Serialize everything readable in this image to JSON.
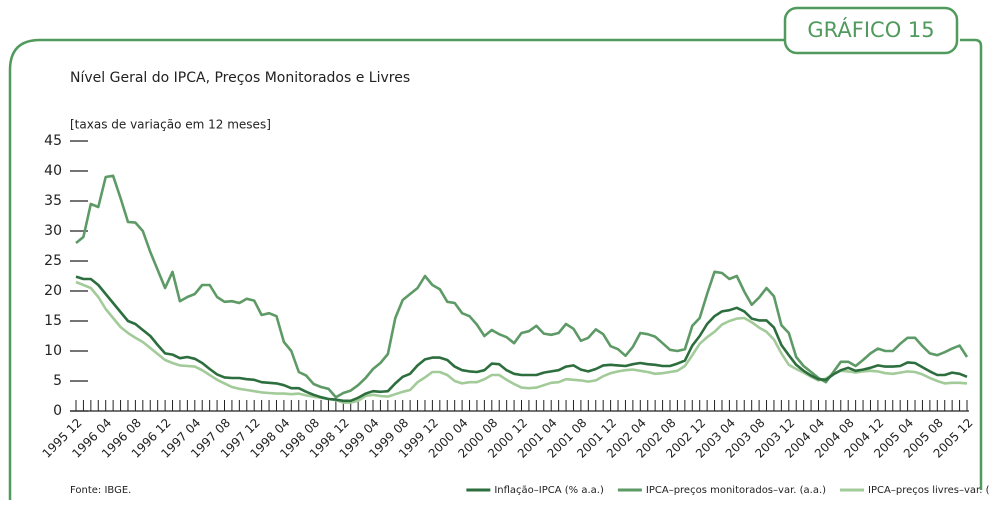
{
  "chart_data": {
    "type": "line",
    "badge": "GRÁFICO 15",
    "title": "Nível Geral do IPCA, Preços Monitorados e Livres",
    "subtitle": "[taxas de variação em 12 meses]",
    "source": "Fonte: IBGE.",
    "categories": [
      "1995 12",
      null,
      null,
      null,
      "1996 04",
      null,
      null,
      null,
      "1996 08",
      null,
      null,
      null,
      "1996 12",
      null,
      null,
      null,
      "1997 04",
      null,
      null,
      null,
      "1997 08",
      null,
      null,
      null,
      "1997 12",
      null,
      null,
      null,
      "1998 04",
      null,
      null,
      null,
      "1998 08",
      null,
      null,
      null,
      "1998 12",
      null,
      null,
      null,
      "1999 04",
      null,
      null,
      null,
      "1999 08",
      null,
      null,
      null,
      "1999 12",
      null,
      null,
      null,
      "2000 04",
      null,
      null,
      null,
      "2000 08",
      null,
      null,
      null,
      "2000 12",
      null,
      null,
      null,
      "2001 04",
      null,
      null,
      null,
      "2001 08",
      null,
      null,
      null,
      "2001 12",
      null,
      null,
      null,
      "2002 04",
      null,
      null,
      null,
      "2002 08",
      null,
      null,
      null,
      "2002 12",
      null,
      null,
      null,
      "2003 04",
      null,
      null,
      null,
      "2003 08",
      null,
      null,
      null,
      "2003 12",
      null,
      null,
      null,
      "2004 04",
      null,
      null,
      null,
      "2004 08",
      null,
      null,
      null,
      "2004 12",
      null,
      null,
      null,
      "2005 04",
      null,
      null,
      null,
      "2005 08",
      null,
      null,
      null,
      "2005 12"
    ],
    "ylim": [
      0,
      45
    ],
    "yticks": [
      0,
      5,
      10,
      15,
      20,
      25,
      30,
      35,
      40,
      45
    ],
    "series": [
      {
        "name": "Inflação–IPCA (% a.a.)",
        "color": "#2d6e3e",
        "values": [
          22.4,
          22,
          22,
          21,
          19.5,
          18,
          16.5,
          15,
          14.5,
          13.5,
          12.5,
          11,
          9.6,
          9.4,
          8.8,
          9,
          8.7,
          8,
          7,
          6.1,
          5.6,
          5.5,
          5.5,
          5.3,
          5.2,
          4.8,
          4.7,
          4.6,
          4.3,
          3.8,
          3.8,
          3.2,
          2.7,
          2.3,
          2,
          1.9,
          1.7,
          1.7,
          2.2,
          2.9,
          3.3,
          3.2,
          3.3,
          4.6,
          5.7,
          6.2,
          7.6,
          8.6,
          8.9,
          8.9,
          8.5,
          7.4,
          6.8,
          6.6,
          6.5,
          6.8,
          7.9,
          7.8,
          6.8,
          6.2,
          6,
          6,
          6,
          6.4,
          6.6,
          6.8,
          7.4,
          7.6,
          6.9,
          6.6,
          7,
          7.6,
          7.7,
          7.6,
          7.5,
          7.8,
          8,
          7.8,
          7.7,
          7.5,
          7.5,
          7.9,
          8.4,
          10.9,
          12.5,
          14.5,
          15.8,
          16.6,
          16.8,
          17.2,
          16.6,
          15.4,
          15.1,
          15.1,
          13.9,
          11,
          9.3,
          7.7,
          6.7,
          5.9,
          5.3,
          5.2,
          6.1,
          6.8,
          7.2,
          6.7,
          6.9,
          7.2,
          7.6,
          7.4,
          7.4,
          7.5,
          8.1,
          8,
          7.3,
          6.6,
          6,
          6,
          6.4,
          6.2,
          5.7
        ]
      },
      {
        "name": "IPCA–preços monitorados–var. (a.a.)",
        "color": "#5e9a66",
        "values": [
          28,
          29,
          34.5,
          34,
          39,
          39.2,
          35.5,
          31.5,
          31.4,
          30,
          26.5,
          23.5,
          20.5,
          23.2,
          18.3,
          19,
          19.5,
          21,
          21,
          19,
          18.2,
          18.3,
          18,
          18.7,
          18.4,
          16,
          16.3,
          15.8,
          11.5,
          10,
          6.5,
          5.9,
          4.5,
          4,
          3.7,
          2.3,
          3,
          3.4,
          4.3,
          5.5,
          7,
          8,
          9.5,
          15.5,
          18.5,
          19.5,
          20.5,
          22.5,
          21,
          20.3,
          18.2,
          18,
          16.3,
          15.8,
          14.4,
          12.5,
          13.5,
          12.8,
          12.3,
          11.3,
          13,
          13.3,
          14.2,
          12.9,
          12.7,
          13,
          14.5,
          13.7,
          11.7,
          12.2,
          13.6,
          12.8,
          10.8,
          10.3,
          9.2,
          10.7,
          13,
          12.8,
          12.4,
          11.3,
          10.2,
          10,
          10.3,
          14.2,
          15.5,
          19.5,
          23.2,
          23,
          22,
          22.5,
          19.9,
          17.7,
          18.9,
          20.5,
          19.1,
          14.3,
          13,
          9,
          7.5,
          6.5,
          5.5,
          4.8,
          6.5,
          8.2,
          8.2,
          7.5,
          8.5,
          9.6,
          10.4,
          10,
          10,
          11.2,
          12.2,
          12.2,
          10.8,
          9.6,
          9.3,
          9.8,
          10.4,
          10.9,
          9
        ]
      },
      {
        "name": "IPCA–preços livres–var. (a.a.)",
        "color": "#a2cb99",
        "values": [
          21.5,
          21,
          20.5,
          19,
          17,
          15.5,
          14,
          13,
          12.2,
          11.5,
          10.5,
          9.5,
          8.5,
          8,
          7.6,
          7.5,
          7.4,
          6.8,
          6,
          5.2,
          4.6,
          4,
          3.7,
          3.5,
          3.3,
          3.1,
          3,
          2.9,
          2.9,
          2.8,
          2.9,
          2.6,
          2.4,
          2.2,
          2,
          1.8,
          1.4,
          1.4,
          1.7,
          2.5,
          2.7,
          2.5,
          2.4,
          2.8,
          3.2,
          3.5,
          4.8,
          5.6,
          6.5,
          6.5,
          6,
          5,
          4.6,
          4.8,
          4.8,
          5.3,
          6,
          6,
          5.2,
          4.5,
          3.9,
          3.8,
          3.9,
          4.3,
          4.7,
          4.8,
          5.3,
          5.2,
          5.1,
          4.9,
          5.1,
          5.8,
          6.3,
          6.6,
          6.8,
          6.9,
          6.7,
          6.5,
          6.2,
          6.3,
          6.5,
          6.7,
          7.5,
          9.3,
          11.2,
          12.3,
          13.2,
          14.4,
          15,
          15.4,
          15.5,
          14.8,
          13.9,
          13.2,
          11.9,
          9.6,
          7.7,
          7,
          6.4,
          5.7,
          5.1,
          5.4,
          6.2,
          6.7,
          6.6,
          6.4,
          6.6,
          6.7,
          6.6,
          6.3,
          6.2,
          6.4,
          6.6,
          6.5,
          6.1,
          5.5,
          5,
          4.6,
          4.7,
          4.7,
          4.6
        ]
      }
    ]
  }
}
